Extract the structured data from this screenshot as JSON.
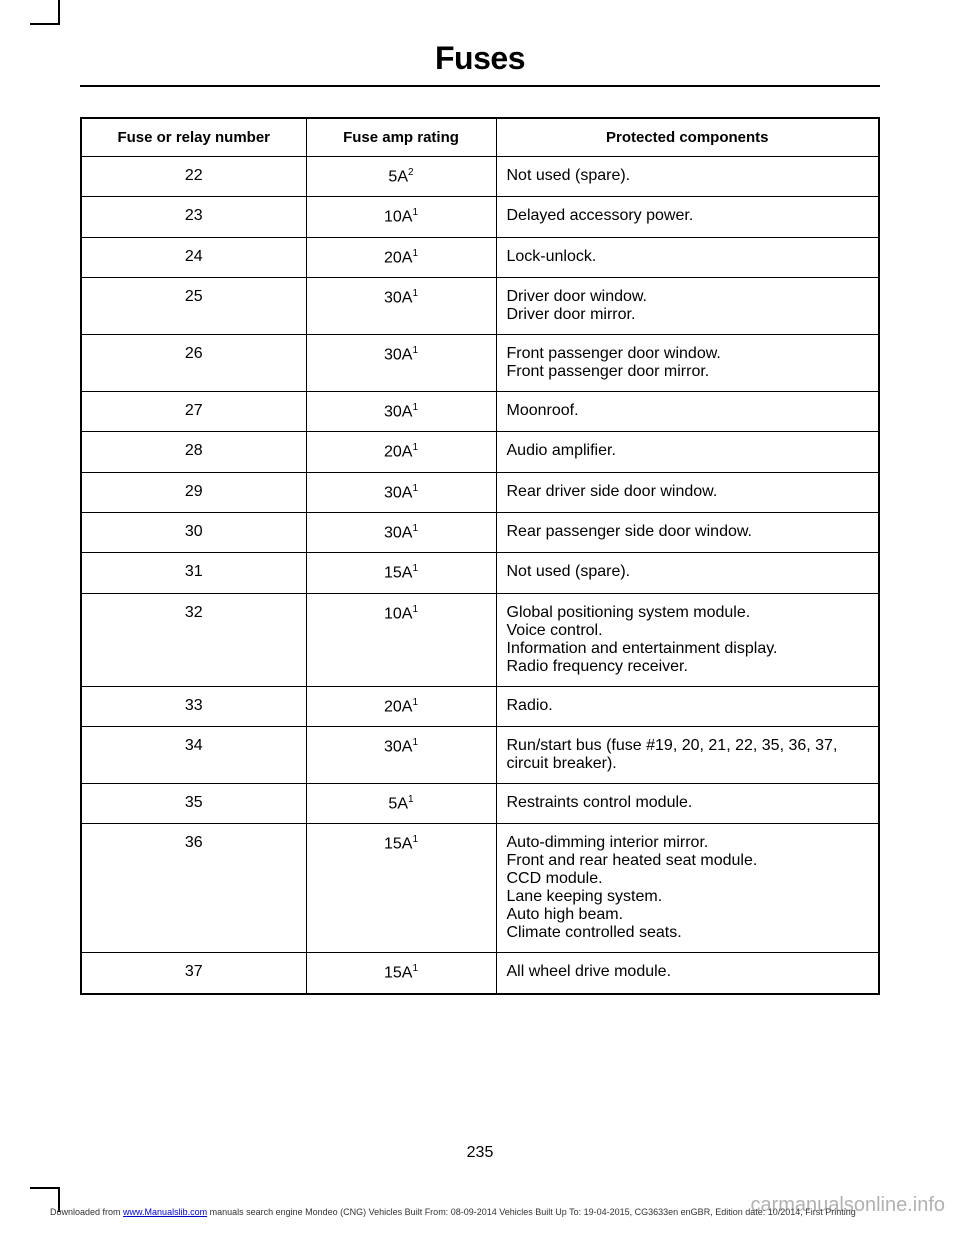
{
  "title": "Fuses",
  "table": {
    "headers": {
      "col1": "Fuse or relay number",
      "col2": "Fuse amp rating",
      "col3": "Protected components"
    },
    "rows": [
      {
        "num": "22",
        "amp": "5A",
        "sup": "2",
        "comp": [
          "Not used (spare)."
        ]
      },
      {
        "num": "23",
        "amp": "10A",
        "sup": "1",
        "comp": [
          "Delayed accessory power."
        ]
      },
      {
        "num": "24",
        "amp": "20A",
        "sup": "1",
        "comp": [
          "Lock-unlock."
        ]
      },
      {
        "num": "25",
        "amp": "30A",
        "sup": "1",
        "comp": [
          "Driver door window.",
          "Driver door mirror."
        ]
      },
      {
        "num": "26",
        "amp": "30A",
        "sup": "1",
        "comp": [
          "Front passenger door window.",
          "Front passenger door mirror."
        ]
      },
      {
        "num": "27",
        "amp": "30A",
        "sup": "1",
        "comp": [
          "Moonroof."
        ]
      },
      {
        "num": "28",
        "amp": "20A",
        "sup": "1",
        "comp": [
          "Audio amplifier."
        ]
      },
      {
        "num": "29",
        "amp": "30A",
        "sup": "1",
        "comp": [
          "Rear driver side door window."
        ]
      },
      {
        "num": "30",
        "amp": "30A",
        "sup": "1",
        "comp": [
          "Rear passenger side door window."
        ]
      },
      {
        "num": "31",
        "amp": "15A",
        "sup": "1",
        "comp": [
          "Not used (spare)."
        ]
      },
      {
        "num": "32",
        "amp": "10A",
        "sup": "1",
        "comp": [
          "Global positioning system module.",
          "Voice control.",
          "Information and entertainment display.",
          "Radio frequency receiver."
        ]
      },
      {
        "num": "33",
        "amp": "20A",
        "sup": "1",
        "comp": [
          "Radio."
        ]
      },
      {
        "num": "34",
        "amp": "30A",
        "sup": "1",
        "comp": [
          "Run/start bus (fuse #19, 20, 21, 22, 35, 36, 37, circuit breaker)."
        ]
      },
      {
        "num": "35",
        "amp": "5A",
        "sup": "1",
        "comp": [
          "Restraints control module."
        ]
      },
      {
        "num": "36",
        "amp": "15A",
        "sup": "1",
        "comp": [
          "Auto-dimming interior mirror.",
          "Front and rear heated seat module.",
          "CCD module.",
          "Lane keeping system.",
          "Auto high beam.",
          "Climate controlled seats."
        ]
      },
      {
        "num": "37",
        "amp": "15A",
        "sup": "1",
        "comp": [
          "All wheel drive module."
        ]
      }
    ]
  },
  "page_number": "235",
  "footer": {
    "prefix": "Downloaded from ",
    "link": "www.Manualslib.com",
    "mid": " manuals search engine ",
    "text": "Mondeo (CNG) Vehicles Built From: 08-09-2014 Vehicles Built Up To: 19-04-2015, CG3633en enGBR, Edition date: 10/2014, First Printing"
  },
  "watermark": "carmanualsonline.info",
  "colors": {
    "text": "#000000",
    "background": "#ffffff",
    "link": "#0000cc",
    "watermark": "rgba(100,100,100,0.5)"
  }
}
